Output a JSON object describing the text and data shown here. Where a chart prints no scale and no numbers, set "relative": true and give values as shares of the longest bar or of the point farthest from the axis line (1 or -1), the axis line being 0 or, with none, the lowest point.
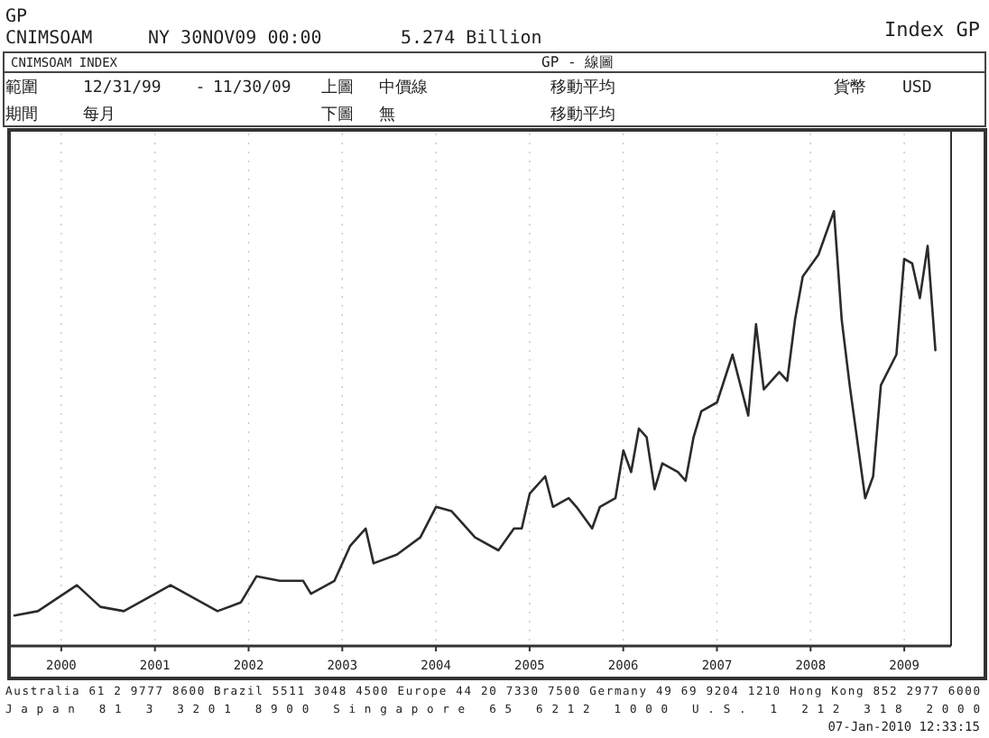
{
  "chart_data": {
    "type": "line",
    "relative": true,
    "grid": "x",
    "marker": "none",
    "line_style": "solid",
    "annotations": [
      "GP",
      "CNIMSOAM",
      "NY 30NOV09 00:00",
      "5.274 Billion",
      "Index GP",
      "CNIMSOAM INDEX",
      "GP - 線圖",
      "範圍",
      "12/31/99",
      "-",
      "11/30/09",
      "上圖",
      "中價線",
      "移動平均",
      "貨幣",
      "USD",
      "期間",
      "每月",
      "下圖",
      "無",
      "移動平均",
      "Australia 61 2 9777 8600 Brazil 5511 3048 4500 Europe 44 20 7330 7500 Germany 49 69 9204 1210 Hong Kong 852 2977 6000",
      "Japan 81 3 3201 8900 Singapore 65 6212 1000 U.S. 1 212 318 2000",
      "07-Jan-2010 12:33:15"
    ],
    "xlim": [
      "2000-01",
      "2010-01"
    ],
    "xticks": [
      {
        "value": "2000-07",
        "label": "2000"
      },
      {
        "value": "2001-07",
        "label": "2001"
      },
      {
        "value": "2002-07",
        "label": "2002"
      },
      {
        "value": "2003-07",
        "label": "2003"
      },
      {
        "value": "2004-07",
        "label": "2004"
      },
      {
        "value": "2005-07",
        "label": "2005"
      },
      {
        "value": "2006-07",
        "label": "2006"
      },
      {
        "value": "2007-07",
        "label": "2007"
      },
      {
        "value": "2008-07",
        "label": "2008"
      },
      {
        "value": "2009-07",
        "label": "2009"
      }
    ],
    "series": [
      {
        "color": "#2b2b2b",
        "x": [
          "2000-01",
          "2000-04",
          "2000-09",
          "2000-12",
          "2001-03",
          "2001-05",
          "2001-09",
          "2001-11",
          "2002-03",
          "2002-06",
          "2002-08",
          "2002-11",
          "2003-02",
          "2003-03",
          "2003-06",
          "2003-08",
          "2003-10",
          "2003-11",
          "2004-02",
          "2004-05",
          "2004-07",
          "2004-09",
          "2004-10",
          "2004-12",
          "2005-03",
          "2005-05",
          "2005-06",
          "2005-07",
          "2005-09",
          "2005-10",
          "2005-12",
          "2006-01",
          "2006-03",
          "2006-04",
          "2006-06",
          "2006-07",
          "2006-08",
          "2006-09",
          "2006-10",
          "2006-11",
          "2006-12",
          "2007-02",
          "2007-03",
          "2007-04",
          "2007-05",
          "2007-07",
          "2007-09",
          "2007-11",
          "2007-12",
          "2008-01",
          "2008-03",
          "2008-04",
          "2008-05",
          "2008-06",
          "2008-08",
          "2008-10",
          "2008-11",
          "2008-12",
          "2009-02",
          "2009-03",
          "2009-04",
          "2009-06",
          "2009-07",
          "2009-08",
          "2009-09",
          "2009-10",
          "2009-11"
        ],
        "values": [
          0.07,
          0.08,
          0.14,
          0.09,
          0.08,
          0.1,
          0.14,
          0.12,
          0.08,
          0.1,
          0.16,
          0.15,
          0.15,
          0.12,
          0.15,
          0.23,
          0.27,
          0.19,
          0.21,
          0.25,
          0.32,
          0.31,
          0.29,
          0.25,
          0.22,
          0.27,
          0.27,
          0.35,
          0.39,
          0.32,
          0.34,
          0.32,
          0.27,
          0.32,
          0.34,
          0.45,
          0.4,
          0.5,
          0.48,
          0.36,
          0.42,
          0.4,
          0.38,
          0.48,
          0.54,
          0.56,
          0.67,
          0.53,
          0.74,
          0.59,
          0.63,
          0.61,
          0.75,
          0.85,
          0.9,
          1,
          0.75,
          0.6,
          0.34,
          0.39,
          0.6,
          0.67,
          0.89,
          0.88,
          0.8,
          0.92,
          0.68
        ]
      }
    ]
  }
}
